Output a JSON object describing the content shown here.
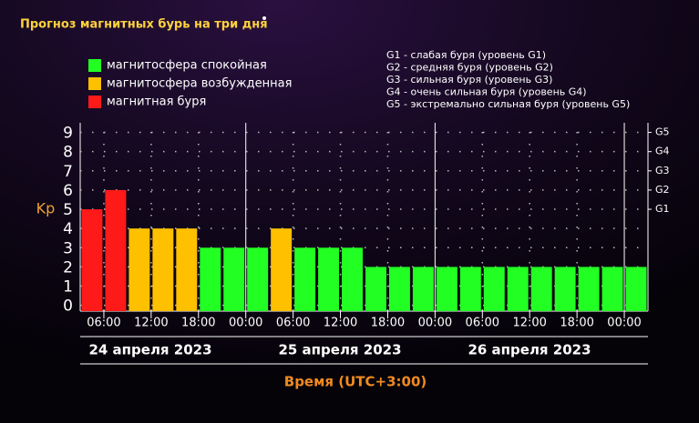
{
  "chart_data": {
    "type": "bar",
    "title": "Прогноз магнитных бурь на три дня",
    "ylabel": "Kp",
    "xlabel": "Время (UTC+3:00)",
    "categories": [
      null,
      null,
      null,
      null,
      null,
      null,
      null,
      null,
      null,
      null,
      null,
      null,
      null,
      null,
      null,
      null,
      null,
      null,
      null,
      null,
      null,
      null,
      null,
      null
    ],
    "values": [
      5,
      6,
      4,
      4,
      4,
      3,
      3,
      3,
      4,
      3,
      3,
      3,
      2,
      2,
      2,
      2,
      2,
      2,
      2,
      2,
      2,
      2,
      2,
      2
    ],
    "colors": [
      "#ff1a1a",
      "#ff1a1a",
      "#ffc000",
      "#ffc000",
      "#ffc000",
      "#22ff22",
      "#22ff22",
      "#22ff22",
      "#ffc000",
      "#22ff22",
      "#22ff22",
      "#22ff22",
      "#22ff22",
      "#22ff22",
      "#22ff22",
      "#22ff22",
      "#22ff22",
      "#22ff22",
      "#22ff22",
      "#22ff22",
      "#22ff22",
      "#22ff22",
      "#22ff22",
      "#22ff22"
    ],
    "ylim": [
      -0.3,
      9.5
    ],
    "yticks": [
      0,
      1,
      2,
      3,
      4,
      5,
      6,
      7,
      8,
      9
    ],
    "y2lim": [
      -0.3,
      9.5
    ],
    "y2ticks": [
      {
        "value": 5,
        "label": "G1"
      },
      {
        "value": 6,
        "label": "G2"
      },
      {
        "value": 7,
        "label": "G3"
      },
      {
        "value": 8,
        "label": "G4"
      },
      {
        "value": 9,
        "label": "G5"
      }
    ],
    "x_tick_labels": [
      "06:00",
      "12:00",
      "18:00",
      "00:00",
      "06:00",
      "12:00",
      "18:00",
      "00:00",
      "06:00",
      "12:00",
      "18:00",
      "00:00"
    ],
    "dates": [
      "24 апреля 2023",
      "25 апреля 2023",
      "26 апреля 2023"
    ],
    "grid": true,
    "legend": [
      {
        "name": "магнитосфера спокойная",
        "color": "#22ff22"
      },
      {
        "name": "магнитосфера возбужденная",
        "color": "#ffc000"
      },
      {
        "name": "магнитная буря",
        "color": "#ff1a1a"
      }
    ],
    "storm_levels": [
      "G1 - слабая буря (уровень G1)",
      "G2 - средняя буря (уровень G2)",
      "G3 - сильная буря (уровень G3)",
      "G4 - очень сильная буря (уровень G4)",
      "G5 - экстремально сильная буря (уровень G5)"
    ]
  }
}
